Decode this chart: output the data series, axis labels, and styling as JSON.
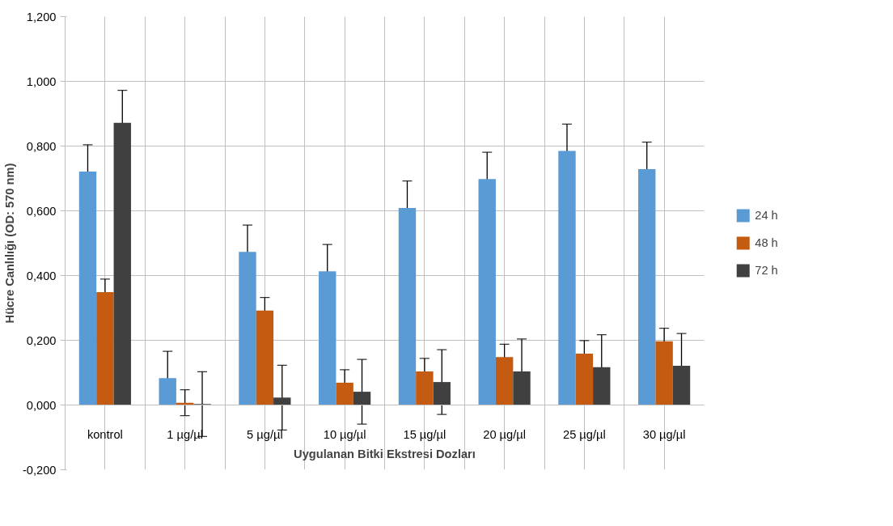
{
  "chart_data": {
    "type": "bar",
    "xlabel": "Uygulanan Bitki Ekstresi Dozları",
    "ylabel": "Hücre Canlılığı (OD: 570 nm)",
    "categories": [
      "kontrol",
      "1 µg/µl",
      "5 µg/µl",
      "10 µg/µl",
      "15 µg/µl",
      "20 µg/µl",
      "25 µg/µl",
      "30 µg/µl"
    ],
    "series": [
      {
        "name": "24 h",
        "color": "#5b9bd5",
        "values": [
          0.721,
          0.083,
          0.473,
          0.413,
          0.609,
          0.698,
          0.785,
          0.729
        ],
        "errors": [
          0.083,
          0.083,
          0.083,
          0.083,
          0.083,
          0.083,
          0.083,
          0.083
        ]
      },
      {
        "name": "48 h",
        "color": "#c55a11",
        "values": [
          0.349,
          0.007,
          0.292,
          0.069,
          0.104,
          0.148,
          0.159,
          0.197
        ],
        "errors": [
          0.04,
          0.04,
          0.04,
          0.04,
          0.04,
          0.04,
          0.04,
          0.04
        ]
      },
      {
        "name": "72 h",
        "color": "#404040",
        "values": [
          0.872,
          0.003,
          0.023,
          0.041,
          0.071,
          0.104,
          0.117,
          0.121
        ],
        "errors": [
          0.1,
          0.1,
          0.1,
          0.1,
          0.1,
          0.1,
          0.1,
          0.1
        ]
      }
    ],
    "ylim": [
      -0.2,
      1.2
    ],
    "yticks": [
      {
        "value": -0.2,
        "label": "-0,200"
      },
      {
        "value": 0,
        "label": "0,000"
      },
      {
        "value": 0.2,
        "label": "0,200"
      },
      {
        "value": 0.4,
        "label": "0,400"
      },
      {
        "value": 0.6,
        "label": "0,600"
      },
      {
        "value": 0.8,
        "label": "0,800"
      },
      {
        "value": 1.0,
        "label": "1,000"
      },
      {
        "value": 1.2,
        "label": "1,200"
      }
    ],
    "grid": true,
    "legend": "right"
  }
}
